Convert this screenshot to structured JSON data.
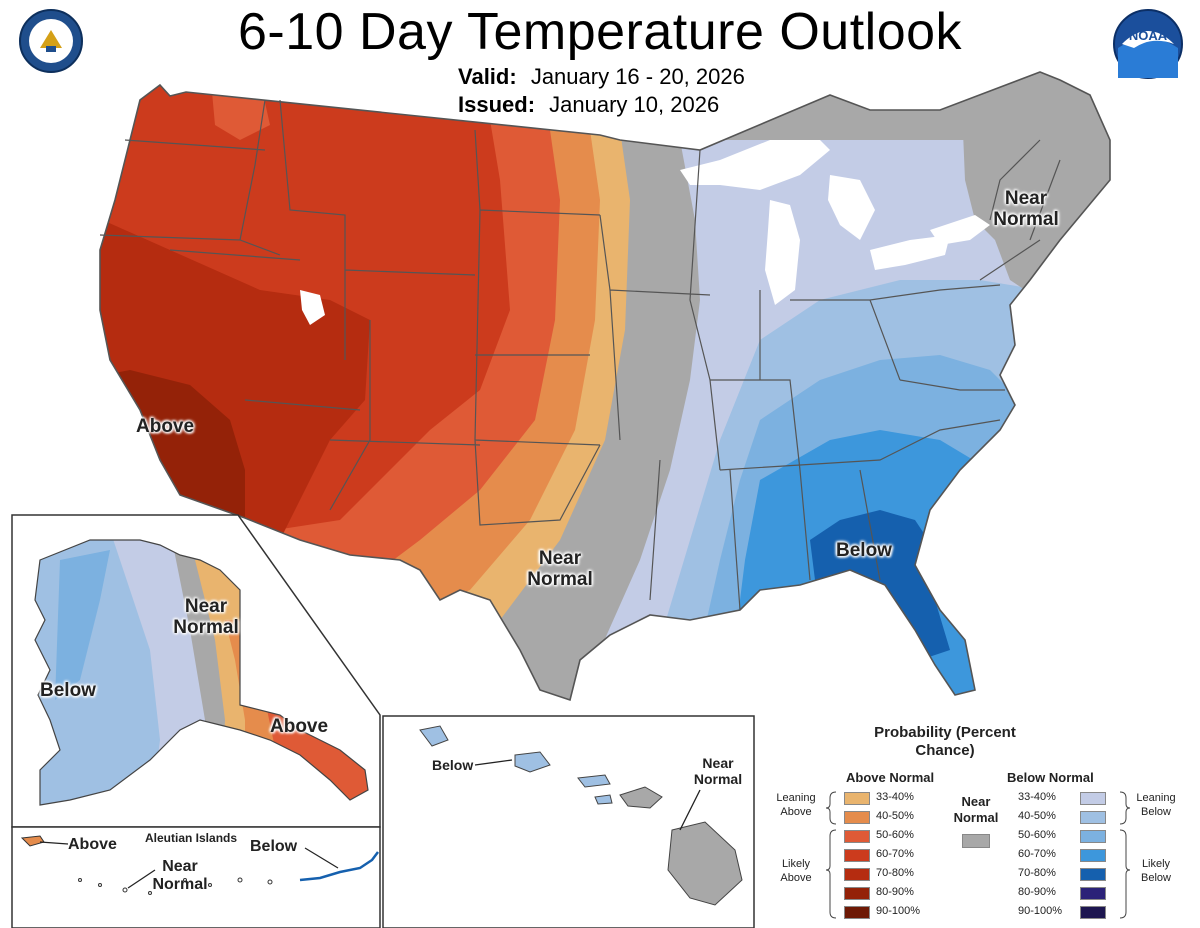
{
  "header": {
    "title": "6-10 Day Temperature Outlook",
    "valid_label": "Valid:",
    "valid_value": "January 16 - 20, 2026",
    "issued_label": "Issued:",
    "issued_value": "January 10, 2026"
  },
  "logos": {
    "left_seal_text": "DEPARTMENT OF COMMERCE · UNITED STATES OF AMERICA",
    "right_logo_text": "NOAA"
  },
  "map_labels": {
    "conus_above": "Above",
    "conus_below": "Below",
    "conus_near_normal_south": "Near Normal",
    "conus_near_normal_ne": "Near Normal",
    "alaska_below": "Below",
    "alaska_near_normal": "Near Normal",
    "alaska_above": "Above",
    "aleutian_title": "Aleutian Islands",
    "aleutian_above": "Above",
    "aleutian_near_normal": "Near Normal",
    "aleutian_below": "Below",
    "hawaii_below": "Below",
    "hawaii_near_normal": "Near Normal"
  },
  "legend": {
    "title": "Probability (Percent Chance)",
    "above_header": "Above Normal",
    "below_header": "Below Normal",
    "near_label": "Near Normal",
    "leaning_above": "Leaning Above",
    "likely_above": "Likely Above",
    "leaning_below": "Leaning Below",
    "likely_below": "Likely Below",
    "near_color": "#a8a8a8",
    "above": [
      {
        "range": "33-40%",
        "color": "#e9b46e"
      },
      {
        "range": "40-50%",
        "color": "#e58c4c"
      },
      {
        "range": "50-60%",
        "color": "#df5a36"
      },
      {
        "range": "60-70%",
        "color": "#cc3b1d"
      },
      {
        "range": "70-80%",
        "color": "#b52c10"
      },
      {
        "range": "80-90%",
        "color": "#942208"
      },
      {
        "range": "90-100%",
        "color": "#6e1905"
      }
    ],
    "below": [
      {
        "range": "33-40%",
        "color": "#c3cce6"
      },
      {
        "range": "40-50%",
        "color": "#9fc0e3"
      },
      {
        "range": "50-60%",
        "color": "#7cb1e0"
      },
      {
        "range": "60-70%",
        "color": "#3d97dc"
      },
      {
        "range": "70-80%",
        "color": "#1560ae"
      },
      {
        "range": "80-90%",
        "color": "#2b2278"
      },
      {
        "range": "90-100%",
        "color": "#1d1650"
      }
    ]
  }
}
